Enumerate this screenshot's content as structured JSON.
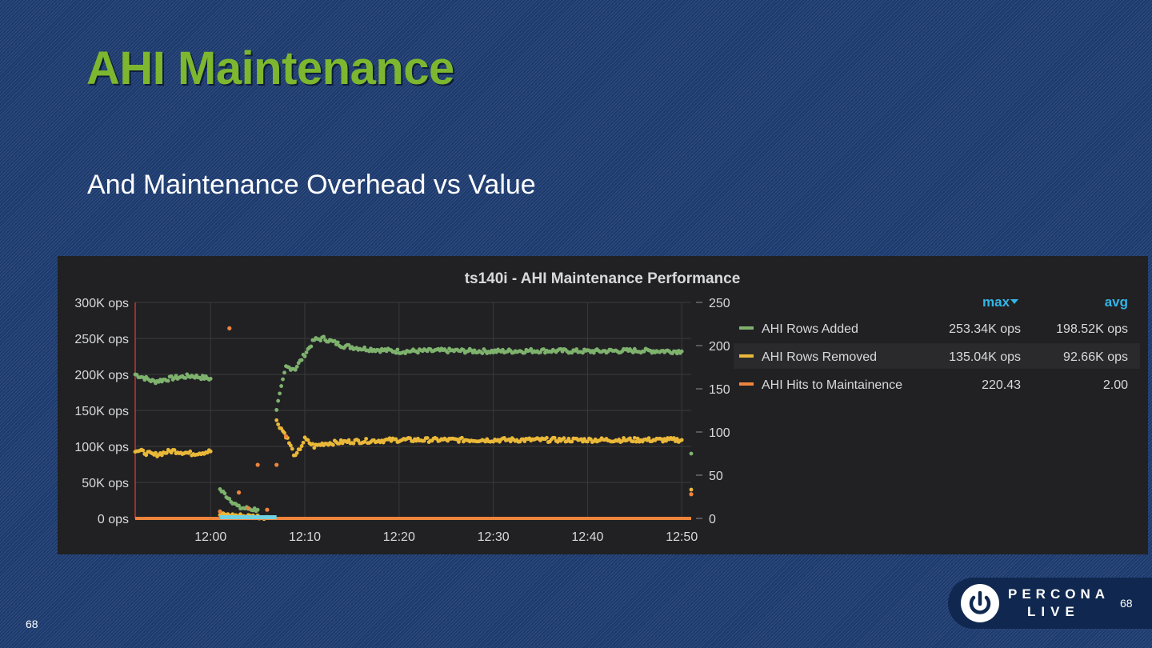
{
  "slide": {
    "title": "AHI Maintenance",
    "subtitle": "And Maintenance Overhead vs Value",
    "page_number_left": "68",
    "page_number_right": "68"
  },
  "brand": {
    "line1": "PERCONA",
    "line2": "LIVE"
  },
  "colors": {
    "title": "#7db72f",
    "panel_bg": "#212124",
    "rows_added": "#7eb26d",
    "rows_removed": "#eab839",
    "hits": "#ef843c",
    "aux_series": "#6ed0e0",
    "header_link": "#33b5e5"
  },
  "chart_data": {
    "type": "scatter",
    "title": "ts140i - AHI Maintenance Performance",
    "x_ticks": [
      "12:00",
      "12:10",
      "12:20",
      "12:30",
      "12:40",
      "12:50"
    ],
    "x_range": [
      "11:52",
      "12:51"
    ],
    "y_left": {
      "ticks": [
        "0 ops",
        "50K ops",
        "100K ops",
        "150K ops",
        "200K ops",
        "250K ops",
        "300K ops"
      ],
      "range": [
        0,
        300000
      ]
    },
    "y_right": {
      "ticks": [
        "0",
        "50",
        "100",
        "150",
        "200",
        "250"
      ],
      "range": [
        0,
        250
      ]
    },
    "grid": true,
    "legend": {
      "placement": "right",
      "headers": {
        "max": "max",
        "avg": "avg"
      },
      "sort_icon": "caret-down-icon",
      "rows": [
        {
          "name": "AHI Rows Added",
          "max": "253.34K ops",
          "avg": "198.52K ops"
        },
        {
          "name": "AHI Rows Removed",
          "max": "135.04K ops",
          "avg": "92.66K ops"
        },
        {
          "name": "AHI Hits to Maintainence",
          "max": "220.43",
          "avg": "2.00"
        }
      ]
    },
    "series": [
      {
        "name": "AHI Rows Added",
        "axis": "left",
        "points": [
          [
            "11:52",
            200000
          ],
          [
            "11:54",
            190000
          ],
          [
            "11:56",
            195000
          ],
          [
            "11:58",
            198000
          ],
          [
            "12:00",
            194000
          ],
          [
            "12:01",
            40000
          ],
          [
            "12:03",
            15000
          ],
          [
            "12:05",
            12000
          ],
          [
            "12:07",
            152000
          ],
          [
            "12:08",
            210000
          ],
          [
            "12:09",
            208000
          ],
          [
            "12:10",
            228000
          ],
          [
            "12:11",
            248000
          ],
          [
            "12:12",
            250000
          ],
          [
            "12:14",
            240000
          ],
          [
            "12:16",
            236000
          ],
          [
            "12:20",
            232000
          ],
          [
            "12:25",
            233000
          ],
          [
            "12:30",
            232000
          ],
          [
            "12:35",
            233000
          ],
          [
            "12:40",
            232000
          ],
          [
            "12:45",
            233000
          ],
          [
            "12:50",
            232000
          ],
          [
            "12:51",
            90000
          ]
        ]
      },
      {
        "name": "AHI Rows Removed",
        "axis": "left",
        "points": [
          [
            "11:52",
            95000
          ],
          [
            "11:54",
            88000
          ],
          [
            "11:56",
            94000
          ],
          [
            "11:58",
            90000
          ],
          [
            "12:00",
            93000
          ],
          [
            "12:01",
            5000
          ],
          [
            "12:04",
            3000
          ],
          [
            "12:06",
            2000
          ],
          [
            "12:07",
            135000
          ],
          [
            "12:08",
            115000
          ],
          [
            "12:09",
            85000
          ],
          [
            "12:10",
            110000
          ],
          [
            "12:11",
            100000
          ],
          [
            "12:12",
            104000
          ],
          [
            "12:15",
            107000
          ],
          [
            "12:20",
            109000
          ],
          [
            "12:25",
            109000
          ],
          [
            "12:30",
            109000
          ],
          [
            "12:35",
            109000
          ],
          [
            "12:40",
            109000
          ],
          [
            "12:45",
            109000
          ],
          [
            "12:50",
            109000
          ],
          [
            "12:51",
            40000
          ]
        ]
      },
      {
        "name": "AHI Hits to Maintainence",
        "axis": "right",
        "points": [
          [
            "11:52",
            0
          ],
          [
            "11:58",
            0
          ],
          [
            "12:01",
            8
          ],
          [
            "12:02",
            220
          ],
          [
            "12:03",
            30
          ],
          [
            "12:04",
            12
          ],
          [
            "12:05",
            62
          ],
          [
            "12:06",
            10
          ],
          [
            "12:07",
            62
          ],
          [
            "12:08",
            95
          ],
          [
            "12:10",
            0
          ],
          [
            "12:30",
            0
          ],
          [
            "12:50",
            0
          ],
          [
            "12:51",
            28
          ]
        ]
      }
    ]
  }
}
